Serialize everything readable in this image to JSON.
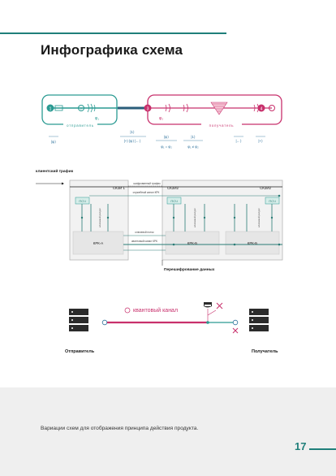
{
  "page": {
    "title": "Инфографика схема",
    "caption": "Вариации схем для отображения принципа действия продукта.",
    "page_number": "17"
  },
  "diagram1": {
    "sender_label": "отправитель",
    "receiver_label": "получатель",
    "node1": "1",
    "node2": "2",
    "node3": "3",
    "node4": "4",
    "phi1": "φ₁",
    "phi2": "φ₂",
    "f_left": "|ψ⟩",
    "f_mid1": "|1⟩",
    "f_mid2": "|+⟩ |ψ⟩ |←⟩",
    "f_mid3": "|ψ⟩",
    "f_mid4": "φ₁ = φ₂",
    "f_mid5": "|1⟩",
    "f_mid6": "φ₁ ≠ φ₂",
    "f_right1": "|←⟩",
    "f_right2": "|+⟩"
  },
  "diagram2": {
    "client_traffic": "клиентский трафик",
    "szi1": "СКЗИ 1",
    "szi2a": "СКЗИ2",
    "szi2b": "СКЗИ2",
    "kzch_a": "КРК-А",
    "kzch_b": "КРК-Б",
    "kzch_c": "КРК-Б",
    "ifk": "ПСЧ",
    "label_info": "шифрованный трафик",
    "label_service": "служебный канал КРК",
    "label_key": "ключевой поток",
    "label_quantum": "квантовый канал КРК",
    "vert_label": "ключевой ресурс",
    "reencrypt": "Перешифрование данных"
  },
  "diagram3": {
    "channel_label": "квантовый канал",
    "sender": "Отправитель",
    "receiver": "Получатель"
  }
}
